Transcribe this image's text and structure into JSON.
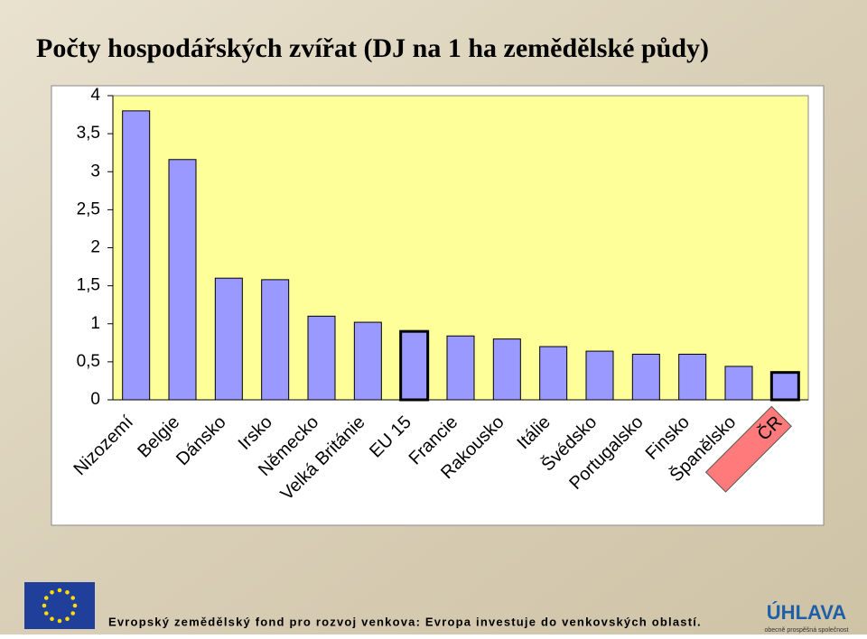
{
  "chart_data": {
    "type": "bar",
    "title": "Počty hospodářských zvířat (DJ na 1 ha zemědělské půdy)",
    "categories": [
      "Nizozemí",
      "Belgie",
      "Dánsko",
      "Irsko",
      "Německo",
      "Velká Británie",
      "EU 15",
      "Francie",
      "Rakousko",
      "Itálie",
      "Švédsko",
      "Portugalsko",
      "Finsko",
      "Španělsko",
      "ČR"
    ],
    "values": [
      3.8,
      3.16,
      1.6,
      1.58,
      1.1,
      1.02,
      0.9,
      0.84,
      0.8,
      0.7,
      0.64,
      0.6,
      0.6,
      0.44,
      0.36
    ],
    "color": "#9999ff",
    "edge_widths": [
      1,
      1,
      1,
      1,
      1,
      1,
      3,
      1,
      1,
      1,
      1,
      1,
      1,
      1,
      3
    ],
    "label_backgrounds": [
      null,
      null,
      null,
      null,
      null,
      null,
      null,
      null,
      null,
      null,
      null,
      null,
      null,
      null,
      "#ff7a7a"
    ],
    "plot_background": "#ffff99",
    "ylim": [
      0,
      4
    ],
    "yticks": [
      0,
      {
        "value": 0.5,
        "label": "0,5"
      },
      1,
      {
        "value": 1.5,
        "label": "1,5"
      },
      2,
      {
        "value": 2.5,
        "label": "2,5"
      },
      3,
      {
        "value": 3.5,
        "label": "3,5"
      },
      4
    ],
    "grid": false
  },
  "footer": {
    "text": "Evropský zemědělský fond pro rozvoj venkova: Evropa investuje do venkovských oblastí.",
    "logo": "ÚHLAVA",
    "logo_subtitle": "obecně prospěšná společnost"
  }
}
